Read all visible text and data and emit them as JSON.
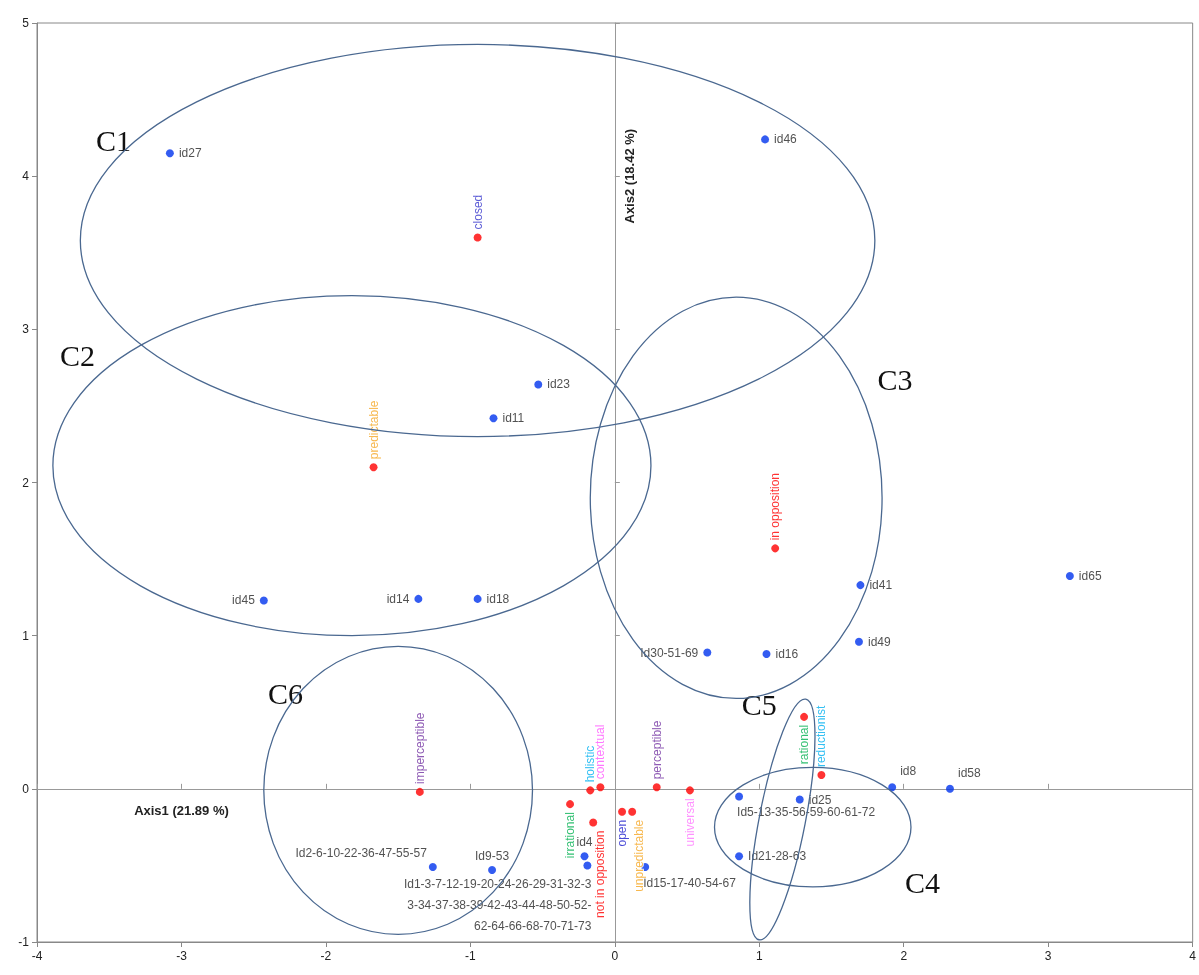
{
  "chart_data": {
    "type": "scatter",
    "xlabel": "Axis1 (21.89 %)",
    "ylabel": "Axis2 (18.42 %)",
    "xlim": [
      -4,
      4
    ],
    "xticks": [
      -4,
      -3,
      -2,
      -1,
      0,
      1,
      2,
      3,
      4
    ],
    "ylim": [
      -1,
      5
    ],
    "yticks": [
      -1,
      0,
      1,
      2,
      3,
      4,
      5
    ],
    "marker": "circle",
    "annotations": [
      "C1",
      "C2",
      "C3",
      "C4",
      "C5",
      "C6"
    ],
    "series": [
      {
        "color": "#0033ee",
        "x": [
          -3.08,
          1.04,
          -0.53,
          -0.84,
          -2.43,
          -1.36,
          -0.95,
          1.7,
          3.15,
          1.69,
          0.64,
          1.05,
          1.92,
          2.32,
          1.28,
          0.86,
          0.86,
          0.21,
          -0.21,
          -0.19,
          -1.26,
          -0.85
        ],
        "values": [
          4.15,
          4.24,
          2.64,
          2.42,
          1.23,
          1.24,
          1.24,
          1.33,
          1.39,
          0.96,
          0.89,
          0.88,
          0.01,
          0.0,
          -0.07,
          -0.05,
          -0.44,
          -0.51,
          -0.44,
          -0.5,
          -0.51,
          -0.53
        ],
        "value_labels": [
          "id27",
          "id46",
          "id23",
          "id11",
          "id45",
          "id14",
          "id18",
          "id41",
          "id65",
          "id49",
          "Id30-51-69",
          "id16",
          "id8",
          "id58",
          "id25",
          "Id5-13-35-56-59-60-61-72",
          "Id21-28-63",
          "Id15-17-40-54-67",
          "id4",
          "Id1-3-7-12-19-20-24-26-29-31-32-33-34-37-38-39-42-43-44-48-50-52-62-64-66-68-70-71-73",
          "Id2-6-10-22-36-47-55-57",
          "Id9-53"
        ]
      },
      {
        "color": "#ff0000",
        "x": [
          -0.95,
          -1.67,
          1.11,
          -1.35,
          -0.17,
          -0.1,
          0.29,
          0.52,
          -0.31,
          -0.15,
          0.05,
          0.12,
          1.31,
          1.43
        ],
        "values": [
          3.6,
          2.1,
          1.57,
          -0.02,
          -0.01,
          0.01,
          0.01,
          -0.01,
          -0.1,
          -0.22,
          -0.15,
          -0.15,
          0.47,
          0.09
        ],
        "value_labels": [
          "closed",
          "predictable",
          "in opposition",
          "imperceptible",
          "holistic",
          "contextual",
          "perceptible",
          "universal",
          "irrational",
          "not in opposition",
          "open",
          "unpredictable",
          "rational",
          "reductionist"
        ]
      }
    ]
  }
}
